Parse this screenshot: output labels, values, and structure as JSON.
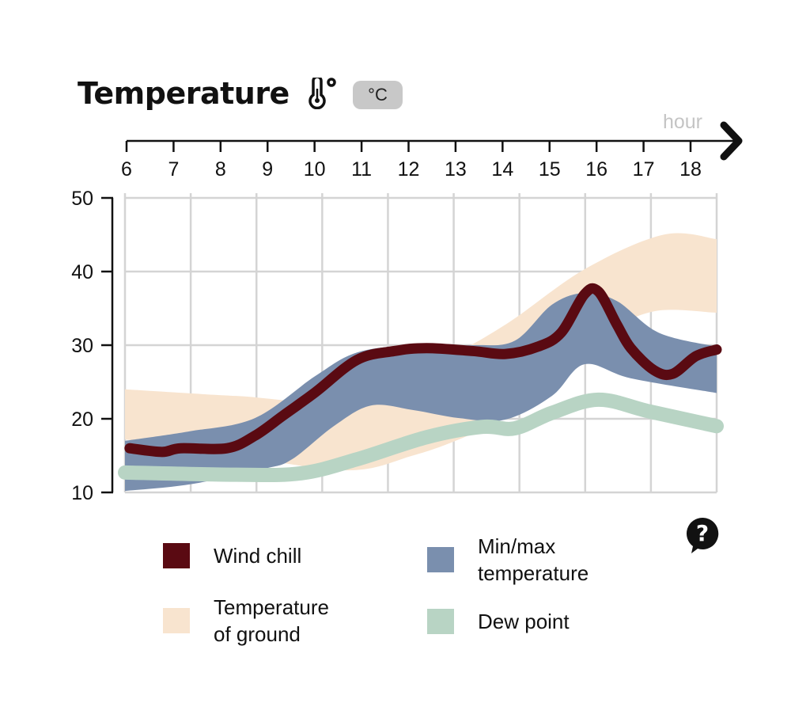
{
  "title": "Temperature",
  "unit": "°C",
  "icons": {
    "title_icon": "thermometer-icon",
    "help": "question-bubble-icon"
  },
  "chart_data": {
    "type": "area",
    "title": "Temperature",
    "xlabel": "hour",
    "ylabel": "°C",
    "x_ticks": [
      6,
      7,
      8,
      9,
      10,
      11,
      12,
      13,
      14,
      15,
      16,
      17,
      18
    ],
    "y_ticks": [
      10,
      20,
      30,
      40,
      50
    ],
    "xlim": [
      6,
      18.75
    ],
    "ylim": [
      10,
      50
    ],
    "grid": true,
    "series": [
      {
        "name": "Temperature of ground",
        "kind": "band",
        "color": "#f8e4cf",
        "upper": [
          [
            6,
            24
          ],
          [
            8.4,
            23.1
          ],
          [
            10.6,
            22.6
          ],
          [
            12.8,
            28
          ],
          [
            14.2,
            32.8
          ],
          [
            15.9,
            40.3
          ],
          [
            17.6,
            45
          ],
          [
            18.75,
            44.4
          ]
        ],
        "lower": [
          [
            6,
            17.2
          ],
          [
            8.4,
            15
          ],
          [
            10.8,
            13
          ],
          [
            12.2,
            15
          ],
          [
            13.2,
            17.2
          ],
          [
            14.2,
            20.2
          ],
          [
            15.2,
            24.2
          ],
          [
            16.3,
            31.2
          ],
          [
            17.4,
            34.6
          ],
          [
            18.75,
            34.4
          ]
        ]
      },
      {
        "name": "Min/max temperature",
        "kind": "band",
        "color": "#7a8fae",
        "upper": [
          [
            6,
            17
          ],
          [
            7.4,
            18.3
          ],
          [
            8.8,
            20.1
          ],
          [
            10.1,
            25.8
          ],
          [
            11,
            29
          ],
          [
            12.2,
            30
          ],
          [
            13.5,
            30
          ],
          [
            14.4,
            30.6
          ],
          [
            15.2,
            35.5
          ],
          [
            15.9,
            37.1
          ],
          [
            16.6,
            36
          ],
          [
            17.5,
            31.7
          ],
          [
            18.75,
            29.8
          ]
        ],
        "lower": [
          [
            6,
            10.2
          ],
          [
            7.4,
            11.1
          ],
          [
            9,
            13.2
          ],
          [
            9.6,
            14.5
          ],
          [
            10.5,
            19
          ],
          [
            11.3,
            21.8
          ],
          [
            12.2,
            21.2
          ],
          [
            13.2,
            20.1
          ],
          [
            14.2,
            19.9
          ],
          [
            15.2,
            23.1
          ],
          [
            15.9,
            27.4
          ],
          [
            16.9,
            25.5
          ],
          [
            18.75,
            23.5
          ]
        ]
      },
      {
        "name": "Dew point",
        "kind": "line",
        "color": "#b8d4c4",
        "points": [
          [
            6,
            12.7
          ],
          [
            8.4,
            12.4
          ],
          [
            9.8,
            12.6
          ],
          [
            11,
            14.5
          ],
          [
            12.5,
            17.5
          ],
          [
            13.7,
            18.9
          ],
          [
            14.4,
            18.7
          ],
          [
            15.2,
            20.8
          ],
          [
            16.2,
            22.6
          ],
          [
            17.3,
            21
          ],
          [
            18.75,
            19
          ]
        ]
      },
      {
        "name": "Wind chill",
        "kind": "line",
        "color": "#5a0a12",
        "points": [
          [
            6.1,
            16
          ],
          [
            6.8,
            15.5
          ],
          [
            7.2,
            16
          ],
          [
            8.2,
            16
          ],
          [
            8.8,
            17.7
          ],
          [
            9.4,
            20.4
          ],
          [
            10.1,
            23.6
          ],
          [
            11,
            28
          ],
          [
            11.8,
            29.2
          ],
          [
            12.5,
            29.6
          ],
          [
            13.5,
            29.2
          ],
          [
            14.2,
            28.8
          ],
          [
            14.9,
            29.8
          ],
          [
            15.4,
            31.7
          ],
          [
            15.9,
            36.9
          ],
          [
            16.2,
            37.3
          ],
          [
            16.6,
            32.8
          ],
          [
            16.9,
            29.6
          ],
          [
            17.4,
            26.6
          ],
          [
            17.8,
            26.1
          ],
          [
            18.3,
            28.5
          ],
          [
            18.75,
            29.4
          ]
        ]
      }
    ],
    "legend": [
      {
        "label": "Wind chill",
        "color": "#5a0a12"
      },
      {
        "label": "Min/max\ntemperature",
        "color": "#7a8fae"
      },
      {
        "label": "Temperature\nof ground",
        "color": "#f8e4cf"
      },
      {
        "label": "Dew point",
        "color": "#b8d4c4"
      }
    ],
    "legend_placement": "bottom"
  }
}
